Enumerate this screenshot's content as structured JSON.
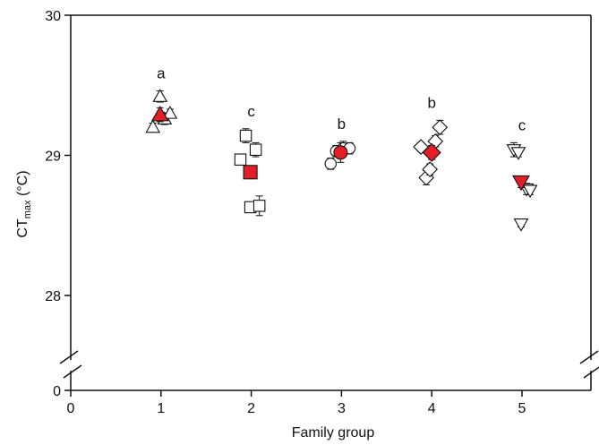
{
  "chart_data": {
    "type": "scatter",
    "title": "",
    "xlabel": "Family group",
    "ylabel_main": "CT",
    "ylabel_sub": "max",
    "ylabel_unit": " (°C)",
    "x_ticks": [
      0,
      1,
      2,
      3,
      4,
      5
    ],
    "y_ticks": [
      0,
      28,
      29,
      30
    ],
    "xlim": [
      0,
      5.8
    ],
    "ylim_broken": {
      "lower": 0,
      "upper_range": [
        27.35,
        30
      ]
    },
    "axis_break": true,
    "colors": {
      "mean_fill": "#e41e26",
      "open_fill": "#ffffff",
      "stroke": "#111111"
    },
    "groups": [
      {
        "family": 1,
        "marker": "triangle-up",
        "letter": "a",
        "mean": {
          "x": 0.99,
          "y": 29.29,
          "err": 0.05
        },
        "individuals": [
          {
            "x": 0.91,
            "y": 29.2,
            "err": 0.03
          },
          {
            "x": 0.99,
            "y": 29.42,
            "err": 0.04
          },
          {
            "x": 1.04,
            "y": 29.26,
            "err": 0.04
          },
          {
            "x": 1.1,
            "y": 29.3,
            "err": 0.03
          }
        ]
      },
      {
        "family": 2,
        "marker": "square",
        "letter": "c",
        "mean": {
          "x": 1.99,
          "y": 28.88,
          "err": 0.03
        },
        "individuals": [
          {
            "x": 1.88,
            "y": 28.97,
            "err": 0.03
          },
          {
            "x": 1.94,
            "y": 29.14,
            "err": 0.05
          },
          {
            "x": 2.05,
            "y": 29.04,
            "err": 0.05
          },
          {
            "x": 1.99,
            "y": 28.63,
            "err": 0.03
          },
          {
            "x": 2.09,
            "y": 28.64,
            "err": 0.07
          }
        ]
      },
      {
        "family": 3,
        "marker": "circle",
        "letter": "b",
        "mean": {
          "x": 2.99,
          "y": 29.02,
          "err": 0.07
        },
        "individuals": [
          {
            "x": 2.88,
            "y": 28.94,
            "err": 0.04
          },
          {
            "x": 2.94,
            "y": 29.03,
            "err": 0.04
          },
          {
            "x": 3.02,
            "y": 29.05,
            "err": 0.05
          },
          {
            "x": 3.09,
            "y": 29.05,
            "err": 0.04
          }
        ]
      },
      {
        "family": 4,
        "marker": "diamond",
        "letter": "b",
        "mean": {
          "x": 4.0,
          "y": 29.02,
          "err": 0.05
        },
        "individuals": [
          {
            "x": 3.88,
            "y": 29.06,
            "err": 0.03
          },
          {
            "x": 3.94,
            "y": 28.84,
            "err": 0.05
          },
          {
            "x": 3.98,
            "y": 28.9,
            "err": 0.04
          },
          {
            "x": 4.04,
            "y": 29.1,
            "err": 0.04
          },
          {
            "x": 4.09,
            "y": 29.2,
            "err": 0.05
          }
        ]
      },
      {
        "family": 5,
        "marker": "triangle-down",
        "letter": "c",
        "mean": {
          "x": 4.99,
          "y": 28.81,
          "err": 0.04
        },
        "individuals": [
          {
            "x": 4.91,
            "y": 29.04,
            "err": 0.05
          },
          {
            "x": 4.96,
            "y": 29.02,
            "err": 0.03
          },
          {
            "x": 4.99,
            "y": 28.51,
            "err": 0.02
          },
          {
            "x": 5.05,
            "y": 28.76,
            "err": 0.04
          },
          {
            "x": 5.09,
            "y": 28.75,
            "err": 0.03
          }
        ]
      }
    ]
  }
}
